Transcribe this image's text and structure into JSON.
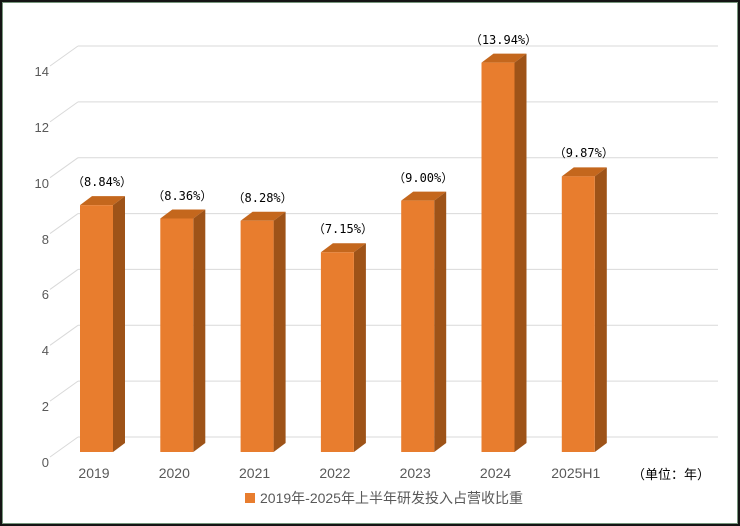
{
  "chart_data": {
    "type": "bar",
    "style": "3d-column",
    "legend": "2019年-2025年上半年研发投入占营收比重",
    "legend_position": "bottom",
    "unit_label": "（单位：年）",
    "categories": [
      "2019",
      "2020",
      "2021",
      "2022",
      "2023",
      "2024",
      "2025H1"
    ],
    "values": [
      8.84,
      8.36,
      8.28,
      7.15,
      9.0,
      13.94,
      9.87
    ],
    "data_labels": [
      "（8.84%）",
      "（8.36%）",
      "（8.28%）",
      "（7.15%）",
      "（9.00%）",
      "（13.94%）",
      "（9.87%）"
    ],
    "ylim": [
      0,
      14
    ],
    "yticks": [
      0,
      2,
      4,
      6,
      8,
      10,
      12,
      14
    ],
    "grid": true,
    "colors": {
      "bar_front": "#E87D2E",
      "bar_top": "#C4671D",
      "bar_side": "#9E5318",
      "gridline": "#D9D9D9",
      "axis_text": "#595959",
      "data_label_text": "#000000",
      "frame_outer": "#141414",
      "frame_inner_green": "#76957C",
      "background": "#FFFFFF"
    }
  }
}
